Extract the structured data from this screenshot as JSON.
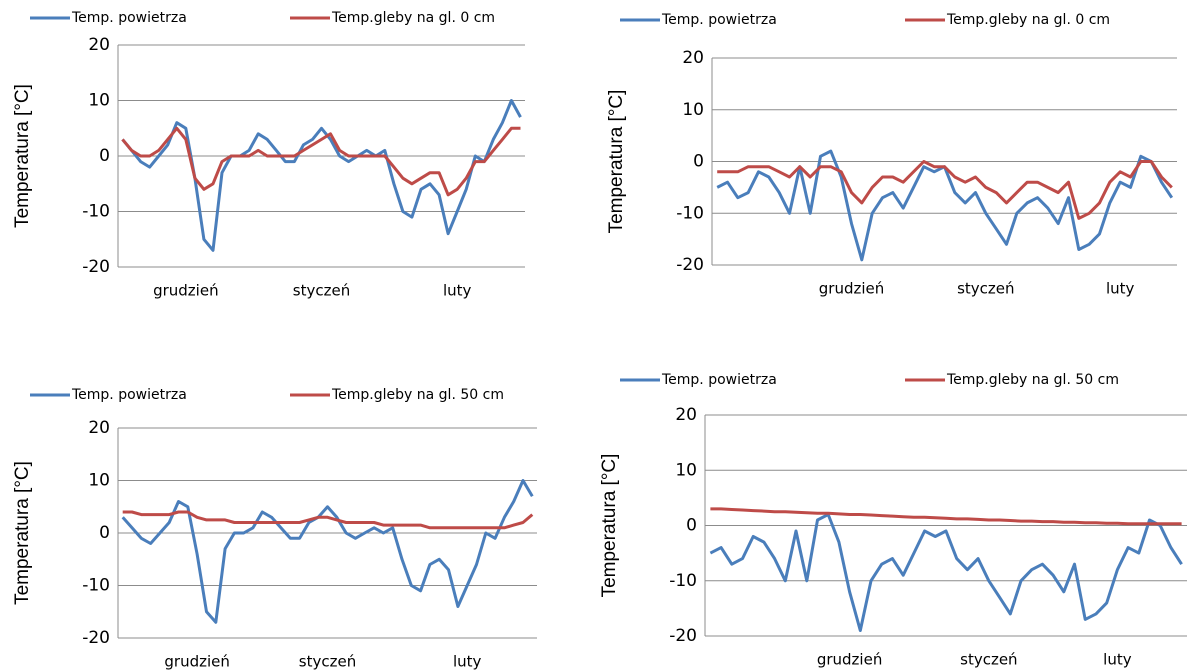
{
  "chart_data": [
    {
      "type": "line",
      "y_label": "Temperatura [°C]",
      "categories": [
        null,
        null,
        null,
        null,
        null,
        null,
        null,
        "grudzień",
        null,
        null,
        null,
        null,
        null,
        null,
        null,
        null,
        null,
        null,
        null,
        null,
        null,
        null,
        "styczeń",
        null,
        null,
        null,
        null,
        null,
        null,
        null,
        null,
        null,
        null,
        null,
        null,
        null,
        null,
        "luty",
        null,
        null,
        null,
        null,
        null,
        null,
        null
      ],
      "series": [
        {
          "name": "Temp. powietrza",
          "color": "#4a7ebb",
          "values": [
            3,
            1,
            -1,
            -2,
            0,
            2,
            6,
            5,
            -4,
            -15,
            -17,
            -3,
            0,
            0,
            1,
            4,
            3,
            1,
            -1,
            -1,
            2,
            3,
            5,
            3,
            0,
            -1,
            0,
            1,
            0,
            1,
            -5,
            -10,
            -11,
            -6,
            -5,
            -7,
            -14,
            -10,
            -6,
            0,
            -1,
            3,
            6,
            10,
            7
          ]
        },
        {
          "name": "Temp.gleby na gl. 0 cm",
          "color": "#be4b48",
          "values": [
            3,
            1,
            0,
            0,
            1,
            3,
            5,
            3,
            -4,
            -6,
            -5,
            -1,
            0,
            0,
            0,
            1,
            0,
            0,
            0,
            0,
            1,
            2,
            3,
            4,
            1,
            0,
            0,
            0,
            0,
            0,
            -2,
            -4,
            -5,
            -4,
            -3,
            -3,
            -7,
            -6,
            -4,
            -1,
            -1,
            1,
            3,
            5,
            5
          ]
        }
      ],
      "ylim": [
        -20,
        20
      ],
      "yticks": [
        -20,
        -10,
        0,
        10,
        20
      ],
      "grid": true
    },
    {
      "type": "line",
      "y_label": "Temperatura [°C]",
      "categories": [
        null,
        null,
        null,
        null,
        null,
        null,
        null,
        null,
        null,
        null,
        null,
        null,
        null,
        "grudzień",
        null,
        null,
        null,
        null,
        null,
        null,
        null,
        null,
        null,
        null,
        null,
        null,
        "styczeń",
        null,
        null,
        null,
        null,
        null,
        null,
        null,
        null,
        null,
        null,
        null,
        null,
        "luty",
        null,
        null,
        null,
        null,
        null
      ],
      "series": [
        {
          "name": "Temp. powietrza",
          "color": "#4a7ebb",
          "values": [
            -5,
            -4,
            -7,
            -6,
            -2,
            -3,
            -6,
            -10,
            -1,
            -10,
            1,
            2,
            -3,
            -12,
            -19,
            -10,
            -7,
            -6,
            -9,
            -5,
            -1,
            -2,
            -1,
            -6,
            -8,
            -6,
            -10,
            -13,
            -16,
            -10,
            -8,
            -7,
            -9,
            -12,
            -7,
            -17,
            -16,
            -14,
            -8,
            -4,
            -5,
            1,
            0,
            -4,
            -7
          ]
        },
        {
          "name": "Temp.gleby na gl. 0 cm",
          "color": "#be4b48",
          "values": [
            -2,
            -2,
            -2,
            -1,
            -1,
            -1,
            -2,
            -3,
            -1,
            -3,
            -1,
            -1,
            -2,
            -6,
            -8,
            -5,
            -3,
            -3,
            -4,
            -2,
            0,
            -1,
            -1,
            -3,
            -4,
            -3,
            -5,
            -6,
            -8,
            -6,
            -4,
            -4,
            -5,
            -6,
            -4,
            -11,
            -10,
            -8,
            -4,
            -2,
            -3,
            0,
            0,
            -3,
            -5
          ]
        }
      ],
      "ylim": [
        -20,
        20
      ],
      "yticks": [
        -20,
        -10,
        0,
        10,
        20
      ],
      "grid": true
    },
    {
      "type": "line",
      "y_label": "Temperatura [°C]",
      "categories": [
        null,
        null,
        null,
        null,
        null,
        null,
        null,
        null,
        "grudzień",
        null,
        null,
        null,
        null,
        null,
        null,
        null,
        null,
        null,
        null,
        null,
        null,
        null,
        "styczeń",
        null,
        null,
        null,
        null,
        null,
        null,
        null,
        null,
        null,
        null,
        null,
        null,
        null,
        null,
        "luty",
        null,
        null,
        null,
        null,
        null,
        null,
        null
      ],
      "series": [
        {
          "name": "Temp. powietrza",
          "color": "#4a7ebb",
          "values": [
            3,
            1,
            -1,
            -2,
            0,
            2,
            6,
            5,
            -4,
            -15,
            -17,
            -3,
            0,
            0,
            1,
            4,
            3,
            1,
            -1,
            -1,
            2,
            3,
            5,
            3,
            0,
            -1,
            0,
            1,
            0,
            1,
            -5,
            -10,
            -11,
            -6,
            -5,
            -7,
            -14,
            -10,
            -6,
            0,
            -1,
            3,
            6,
            10,
            7
          ]
        },
        {
          "name": "Temp.gleby na gl. 50 cm",
          "color": "#be4b48",
          "values": [
            4,
            4,
            3.5,
            3.5,
            3.5,
            3.5,
            4,
            4,
            3,
            2.5,
            2.5,
            2.5,
            2,
            2,
            2,
            2,
            2,
            2,
            2,
            2,
            2.5,
            3,
            3,
            2.5,
            2,
            2,
            2,
            2,
            1.5,
            1.5,
            1.5,
            1.5,
            1.5,
            1,
            1,
            1,
            1,
            1,
            1,
            1,
            1,
            1,
            1.5,
            2,
            3.5
          ]
        }
      ],
      "ylim": [
        -20,
        20
      ],
      "yticks": [
        -20,
        -10,
        0,
        10,
        20
      ],
      "grid": true
    },
    {
      "type": "line",
      "y_label": "Temperatura [°C]",
      "categories": [
        null,
        null,
        null,
        null,
        null,
        null,
        null,
        null,
        null,
        null,
        null,
        null,
        null,
        "grudzień",
        null,
        null,
        null,
        null,
        null,
        null,
        null,
        null,
        null,
        null,
        null,
        null,
        "styczeń",
        null,
        null,
        null,
        null,
        null,
        null,
        null,
        null,
        null,
        null,
        null,
        "luty",
        null,
        null,
        null,
        null,
        null,
        null
      ],
      "series": [
        {
          "name": "Temp. powietrza",
          "color": "#4a7ebb",
          "values": [
            -5,
            -4,
            -7,
            -6,
            -2,
            -3,
            -6,
            -10,
            -1,
            -10,
            1,
            2,
            -3,
            -12,
            -19,
            -10,
            -7,
            -6,
            -9,
            -5,
            -1,
            -2,
            -1,
            -6,
            -8,
            -6,
            -10,
            -13,
            -16,
            -10,
            -8,
            -7,
            -9,
            -12,
            -7,
            -17,
            -16,
            -14,
            -8,
            -4,
            -5,
            1,
            0,
            -4,
            -7
          ]
        },
        {
          "name": "Temp.gleby na gl. 50 cm",
          "color": "#be4b48",
          "values": [
            3,
            3,
            2.9,
            2.8,
            2.7,
            2.6,
            2.5,
            2.5,
            2.4,
            2.3,
            2.2,
            2.2,
            2.1,
            2,
            2,
            1.9,
            1.8,
            1.7,
            1.6,
            1.5,
            1.5,
            1.4,
            1.3,
            1.2,
            1.2,
            1.1,
            1,
            1,
            0.9,
            0.8,
            0.8,
            0.7,
            0.7,
            0.6,
            0.6,
            0.5,
            0.5,
            0.4,
            0.4,
            0.3,
            0.3,
            0.3,
            0.3,
            0.3,
            0.3
          ]
        }
      ],
      "ylim": [
        -20,
        20
      ],
      "yticks": [
        -20,
        -10,
        0,
        10,
        20
      ],
      "grid": true
    }
  ]
}
